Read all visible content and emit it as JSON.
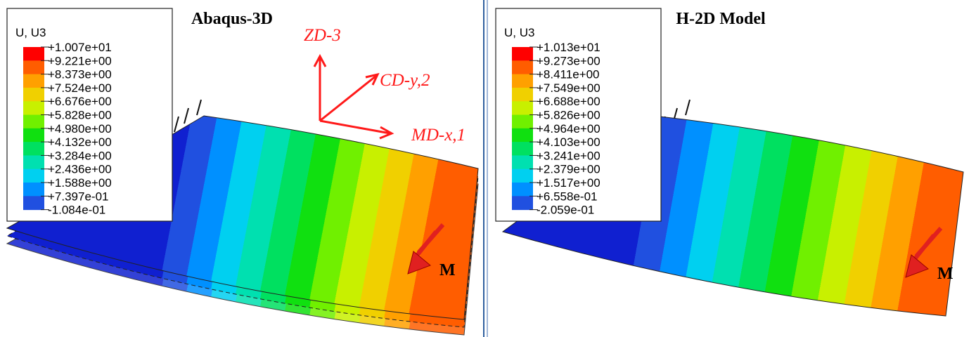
{
  "panels": [
    {
      "title": "Abaqus-3D",
      "legend": {
        "title": "U, U3",
        "labels": [
          "+1.007e+01",
          "+9.221e+00",
          "+8.373e+00",
          "+7.524e+00",
          "+6.676e+00",
          "+5.828e+00",
          "+4.980e+00",
          "+4.132e+00",
          "+3.284e+00",
          "+2.436e+00",
          "+1.588e+00",
          "+7.397e-01",
          "-1.084e-01"
        ]
      },
      "axes": {
        "z": "ZD-3",
        "y": "CD-y,2",
        "x": "MD-x,1"
      },
      "moment": "M"
    },
    {
      "title": "H-2D Model",
      "legend": {
        "title": "U, U3",
        "labels": [
          "+1.013e+01",
          "+9.273e+00",
          "+8.411e+00",
          "+7.549e+00",
          "+6.688e+00",
          "+5.826e+00",
          "+4.964e+00",
          "+4.103e+00",
          "+3.241e+00",
          "+2.379e+00",
          "+1.517e+00",
          "+6.558e-01",
          "-2.059e-01"
        ]
      },
      "moment": "M"
    }
  ]
}
